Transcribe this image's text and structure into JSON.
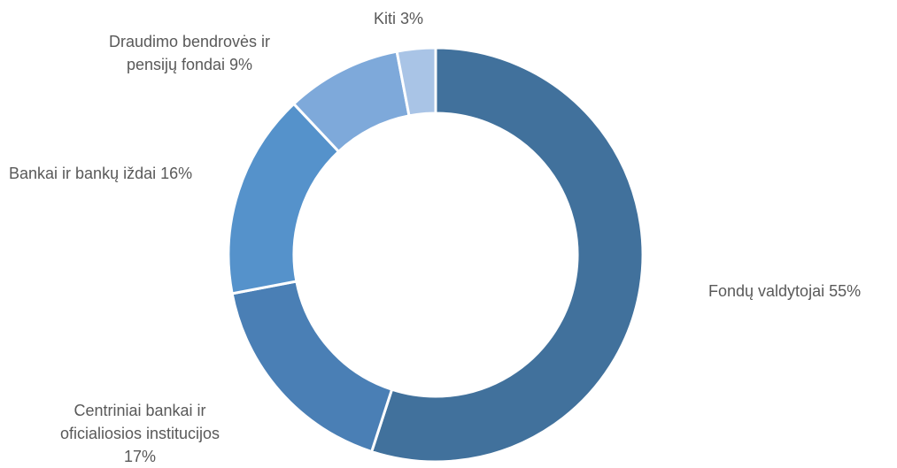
{
  "chart_data": {
    "type": "pie",
    "variant": "doughnut",
    "title": "",
    "slices": [
      {
        "label_lines": [
          "Fondų valdytojai 55%"
        ],
        "value": 55,
        "color": "#41719c"
      },
      {
        "label_lines": [
          "Centriniai bankai ir",
          "oficialiosios institucijos",
          "17%"
        ],
        "value": 17,
        "color": "#4a7fb5"
      },
      {
        "label_lines": [
          "Bankai ir bankų iždai 16%"
        ],
        "value": 16,
        "color": "#5592cb"
      },
      {
        "label_lines": [
          "Draudimo bendrovės ir",
          "pensijų fondai 9%"
        ],
        "value": 9,
        "color": "#7ea9da"
      },
      {
        "label_lines": [
          "Kiti 3%"
        ],
        "value": 3,
        "color": "#a9c4e6"
      }
    ],
    "start_angle_deg": 0,
    "direction": "clockwise",
    "legend": "none"
  }
}
